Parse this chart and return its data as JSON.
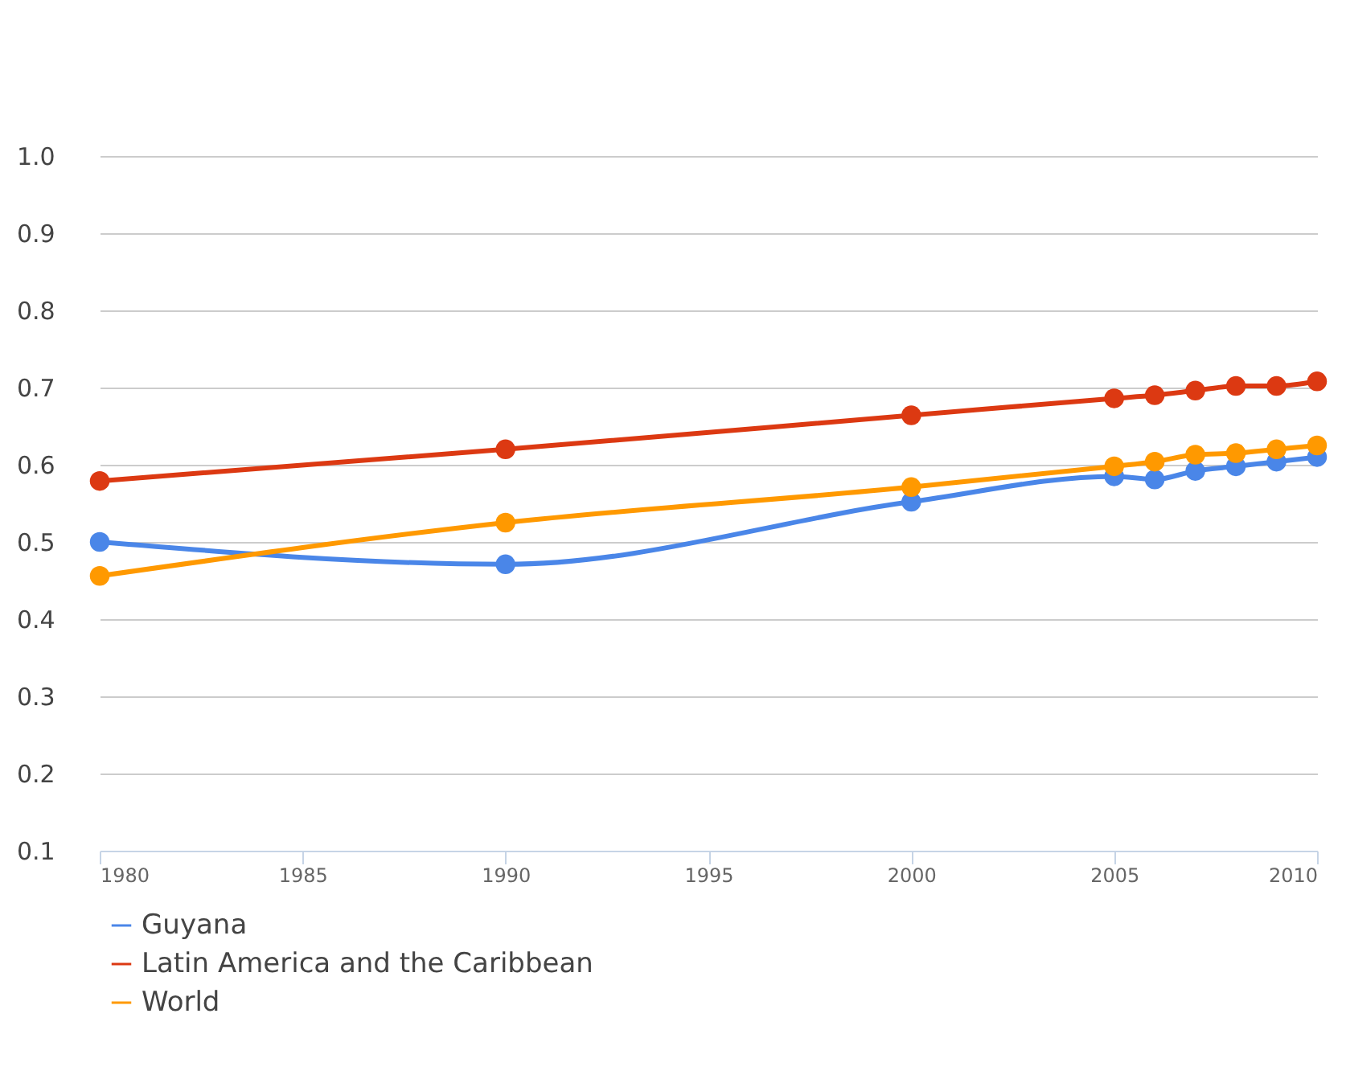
{
  "chart_data": {
    "type": "line",
    "x": [
      1980,
      1990,
      2000,
      2005,
      2006,
      2007,
      2008,
      2009,
      2010
    ],
    "series": [
      {
        "name": "Guyana",
        "color": "#4a86e8",
        "values": [
          0.5,
          0.471,
          0.552,
          0.585,
          0.581,
          0.592,
          0.598,
          0.604,
          0.61
        ]
      },
      {
        "name": "Latin America and the Caribbean",
        "color": "#dc3912",
        "values": [
          0.579,
          0.62,
          0.664,
          0.686,
          0.69,
          0.696,
          0.702,
          0.702,
          0.708
        ]
      },
      {
        "name": "World",
        "color": "#ff9900",
        "values": [
          0.456,
          0.525,
          0.571,
          0.598,
          0.604,
          0.613,
          0.615,
          0.62,
          0.625
        ]
      }
    ],
    "xlim": [
      1980,
      2010
    ],
    "xticks": [
      1980,
      1985,
      1990,
      1995,
      2000,
      2005,
      2010
    ],
    "ylim": [
      0.1,
      1.0
    ],
    "yticks": [
      {
        "value": 0.1,
        "label": "0.1"
      },
      {
        "value": 0.2,
        "label": "0.2"
      },
      {
        "value": 0.3,
        "label": "0.3"
      },
      {
        "value": 0.4,
        "label": "0.4"
      },
      {
        "value": 0.5,
        "label": "0.5"
      },
      {
        "value": 0.6,
        "label": "0.6"
      },
      {
        "value": 0.7,
        "label": "0.7"
      },
      {
        "value": 0.8,
        "label": "0.8"
      },
      {
        "value": 0.9,
        "label": "0.9"
      },
      {
        "value": 1.0,
        "label": "1.0"
      }
    ],
    "grid": "y",
    "legend": "bottom left",
    "marker": "circle",
    "line_style": "solid"
  }
}
